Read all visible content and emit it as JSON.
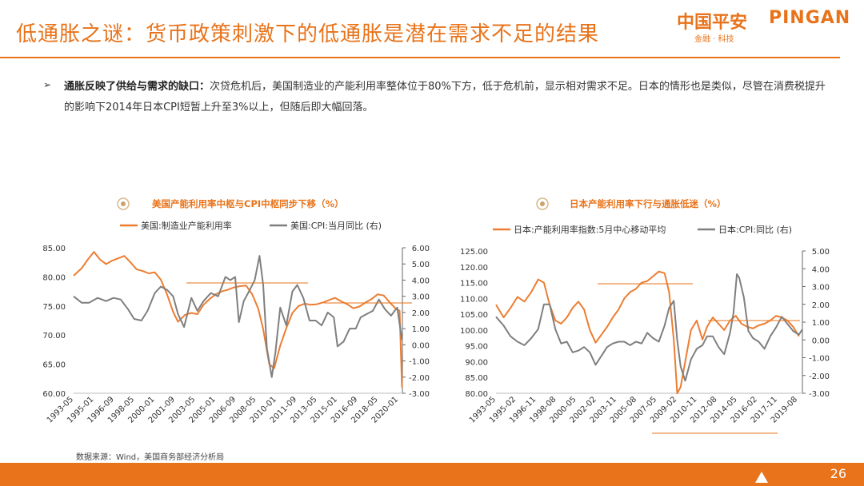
{
  "header": {
    "title": "低通胀之谜：货币政策刺激下的低通胀是潜在需求不足的结果",
    "logo_cn": "中国平安",
    "logo_en": "PINGAN",
    "logo_sub": "金融 · 科技"
  },
  "content": {
    "bullet_glyph": "➢",
    "bold_lead": "通胀反映了供给与需求的缺口：",
    "text": "次贷危机后，美国制造业的产能利用率整体位于80%下方，低于危机前，显示相对需求不足。日本的情形也是类似，尽管在消费税提升的影响下2014年日本CPI短暂上升至3%以上，但随后即大幅回落。"
  },
  "source": "数据来源：Wind，美国商务部经济分析局",
  "page_number": "26",
  "colors": {
    "accent": "#e8731a",
    "orange_series": "#ed7d31",
    "gray_series": "#7f7f7f"
  },
  "chart_data": [
    {
      "type": "line",
      "title": "美国产能利用率中枢与CPI中枢同步下移（%）",
      "left_ylim": [
        60,
        85
      ],
      "right_ylim": [
        -3,
        6
      ],
      "left_ticks": [
        "85.00",
        "80.00",
        "75.00",
        "70.00",
        "65.00",
        "60.00"
      ],
      "right_ticks": [
        "6.00",
        "5.00",
        "4.00",
        "3.00",
        "2.00",
        "1.00",
        "0.00",
        "-1.00",
        "-2.00",
        "-3.00"
      ],
      "x_ticks": [
        "1993-05",
        "1995-01",
        "1996-09",
        "1998-05",
        "2000-01",
        "2001-09",
        "2003-05",
        "2005-01",
        "2006-09",
        "2008-05",
        "2010-01",
        "2011-09",
        "2013-05",
        "2015-01",
        "2016-09",
        "2018-05",
        "2020-01"
      ],
      "series": [
        {
          "name": "美国:制造业产能利用率",
          "axis": "left",
          "x": [
            1993.33,
            1994.0,
            1994.5,
            1995.0,
            1995.5,
            1996.0,
            1996.5,
            1997.0,
            1997.5,
            1998.0,
            1998.5,
            1999.0,
            1999.5,
            2000.0,
            2000.5,
            2001.0,
            2001.5,
            2001.9,
            2002.5,
            2003.0,
            2003.5,
            2004.0,
            2004.5,
            2005.0,
            2005.5,
            2006.0,
            2006.5,
            2007.0,
            2007.5,
            2008.0,
            2008.5,
            2008.9,
            2009.4,
            2009.8,
            2010.3,
            2010.8,
            2011.3,
            2011.8,
            2012.3,
            2012.8,
            2013.3,
            2013.8,
            2014.3,
            2014.8,
            2015.3,
            2015.8,
            2016.3,
            2016.8,
            2017.3,
            2017.8,
            2018.3,
            2018.8,
            2019.3,
            2019.8,
            2020.1,
            2020.3
          ],
          "values": [
            80.2,
            81.5,
            83.0,
            84.3,
            83.0,
            82.2,
            82.8,
            83.2,
            83.6,
            82.5,
            81.3,
            81.0,
            80.6,
            80.8,
            79.5,
            77.0,
            74.0,
            72.3,
            73.5,
            73.8,
            73.6,
            75.2,
            76.2,
            77.0,
            77.5,
            77.8,
            78.2,
            78.4,
            78.5,
            77.0,
            74.5,
            71.0,
            65.0,
            64.3,
            68.2,
            71.2,
            73.8,
            75.0,
            75.4,
            75.2,
            75.3,
            75.6,
            76.0,
            76.4,
            75.8,
            75.3,
            74.6,
            74.9,
            75.6,
            76.2,
            77.0,
            76.8,
            75.6,
            74.5,
            74.2,
            61.0
          ]
        },
        {
          "name": "美国:CPI:当月同比 (右)",
          "axis": "right",
          "x": [
            1993.33,
            1994.0,
            1994.6,
            1995.3,
            1996.0,
            1996.6,
            1997.2,
            1997.8,
            1998.3,
            1998.9,
            1999.4,
            2000.0,
            2000.5,
            2001.0,
            2001.5,
            2001.9,
            2002.4,
            2003.0,
            2003.5,
            2004.0,
            2004.6,
            2005.2,
            2005.8,
            2006.2,
            2006.6,
            2006.9,
            2007.3,
            2007.8,
            2008.2,
            2008.6,
            2008.9,
            2009.2,
            2009.6,
            2009.9,
            2010.3,
            2010.8,
            2011.3,
            2011.7,
            2012.2,
            2012.7,
            2013.2,
            2013.7,
            2014.2,
            2014.7,
            2015.0,
            2015.5,
            2016.0,
            2016.5,
            2016.9,
            2017.4,
            2017.9,
            2018.4,
            2018.9,
            2019.4,
            2019.9,
            2020.3
          ],
          "values": [
            3.0,
            2.6,
            2.6,
            2.9,
            2.7,
            2.9,
            2.8,
            2.2,
            1.6,
            1.5,
            2.1,
            3.2,
            3.6,
            3.4,
            3.0,
            1.9,
            1.1,
            2.9,
            2.1,
            2.7,
            3.2,
            3.0,
            4.2,
            4.0,
            4.2,
            1.4,
            2.7,
            3.4,
            4.0,
            5.5,
            3.7,
            -0.2,
            -2.0,
            -0.5,
            2.3,
            1.2,
            3.3,
            3.7,
            2.9,
            1.5,
            1.5,
            1.2,
            2.0,
            1.7,
            -0.1,
            0.2,
            1.0,
            1.0,
            1.7,
            1.9,
            2.1,
            2.8,
            2.2,
            1.8,
            2.3,
            0.3
          ]
        }
      ],
      "legend": [
        "美国:制造业产能利用率",
        "美国:CPI:当月同比 (右)"
      ]
    },
    {
      "type": "line",
      "title": "日本产能利用率下行与通胀低迷（%）",
      "left_ylim": [
        80,
        125
      ],
      "right_ylim": [
        -3,
        5
      ],
      "left_ticks": [
        "125.00",
        "120.00",
        "115.00",
        "110.00",
        "105.00",
        "100.00",
        "95.00",
        "90.00",
        "85.00",
        "80.00"
      ],
      "right_ticks": [
        "5.00",
        "4.00",
        "3.00",
        "2.00",
        "1.00",
        "0.00",
        "-1.00",
        "-2.00",
        "-3.00"
      ],
      "x_ticks": [
        "1993-05",
        "1995-02",
        "1996-11",
        "1998-08",
        "2000-05",
        "2002-02",
        "2003-11",
        "2005-08",
        "2007-05",
        "2009-02",
        "2010-11",
        "2012-08",
        "2014-05",
        "2016-02",
        "2017-11",
        "2019-08"
      ],
      "series": [
        {
          "name": "日本:产能利用率指数:5月中心移动平均",
          "axis": "left",
          "x": [
            1993.33,
            1994.0,
            1994.6,
            1995.2,
            1995.8,
            1996.4,
            1997.0,
            1997.5,
            1998.0,
            1998.5,
            1999.0,
            1999.5,
            2000.0,
            2000.5,
            2001.0,
            2001.5,
            2002.0,
            2002.5,
            2003.0,
            2003.5,
            2004.0,
            2004.5,
            2005.0,
            2005.5,
            2006.0,
            2006.5,
            2007.0,
            2007.5,
            2008.0,
            2008.4,
            2008.8,
            2009.1,
            2009.4,
            2009.8,
            2010.3,
            2010.8,
            2011.3,
            2011.7,
            2012.2,
            2012.7,
            2013.2,
            2013.7,
            2014.2,
            2014.7,
            2015.2,
            2015.7,
            2016.2,
            2016.7,
            2017.2,
            2017.7,
            2018.2,
            2018.7,
            2019.2,
            2019.7
          ],
          "values": [
            108.0,
            104.0,
            107.0,
            110.5,
            109.0,
            112.0,
            116.0,
            115.0,
            108.0,
            103.0,
            102.0,
            104.0,
            107.0,
            109.0,
            106.5,
            100.0,
            96.0,
            98.5,
            101.0,
            104.0,
            106.5,
            110.0,
            112.0,
            113.0,
            115.0,
            115.5,
            117.0,
            118.5,
            118.0,
            112.0,
            97.0,
            80.0,
            82.0,
            90.0,
            100.0,
            103.0,
            97.0,
            101.0,
            104.0,
            102.0,
            100.0,
            103.0,
            104.5,
            102.0,
            101.0,
            100.5,
            101.5,
            102.0,
            103.0,
            104.5,
            104.0,
            103.0,
            101.0,
            98.0
          ]
        },
        {
          "name": "日本:CPI:同比 (右)",
          "axis": "right",
          "x": [
            1993.33,
            1994.0,
            1994.6,
            1995.2,
            1995.8,
            1996.4,
            1997.0,
            1997.5,
            1998.0,
            1998.5,
            1999.0,
            1999.5,
            2000.0,
            2000.5,
            2001.0,
            2001.5,
            2002.0,
            2002.5,
            2003.0,
            2003.5,
            2004.0,
            2004.5,
            2005.0,
            2005.5,
            2006.0,
            2006.5,
            2007.0,
            2007.5,
            2008.0,
            2008.4,
            2008.8,
            2009.1,
            2009.4,
            2009.8,
            2010.3,
            2010.8,
            2011.3,
            2011.7,
            2012.2,
            2012.7,
            2013.2,
            2013.7,
            2014.0,
            2014.3,
            2014.5,
            2014.9,
            2015.3,
            2015.7,
            2016.2,
            2016.7,
            2017.2,
            2017.7,
            2018.2,
            2018.7,
            2019.2,
            2019.7,
            2020.0
          ],
          "values": [
            1.3,
            0.8,
            0.2,
            -0.1,
            -0.3,
            0.1,
            0.6,
            2.0,
            2.0,
            0.6,
            -0.2,
            -0.1,
            -0.7,
            -0.6,
            -0.4,
            -0.7,
            -1.4,
            -0.9,
            -0.4,
            -0.2,
            -0.1,
            -0.1,
            -0.3,
            -0.1,
            -0.2,
            0.4,
            0.1,
            -0.1,
            0.8,
            1.8,
            2.2,
            0.0,
            -1.5,
            -2.3,
            -1.1,
            -0.5,
            -0.3,
            0.2,
            0.2,
            -0.4,
            -0.8,
            0.4,
            1.5,
            3.7,
            3.5,
            2.4,
            0.5,
            0.1,
            -0.1,
            -0.5,
            0.2,
            0.7,
            1.3,
            0.9,
            0.5,
            0.3,
            0.6
          ]
        }
      ],
      "legend": [
        "日本:产能利用率指数:5月中心移动平均",
        "日本:CPI:同比 (右)"
      ]
    }
  ]
}
